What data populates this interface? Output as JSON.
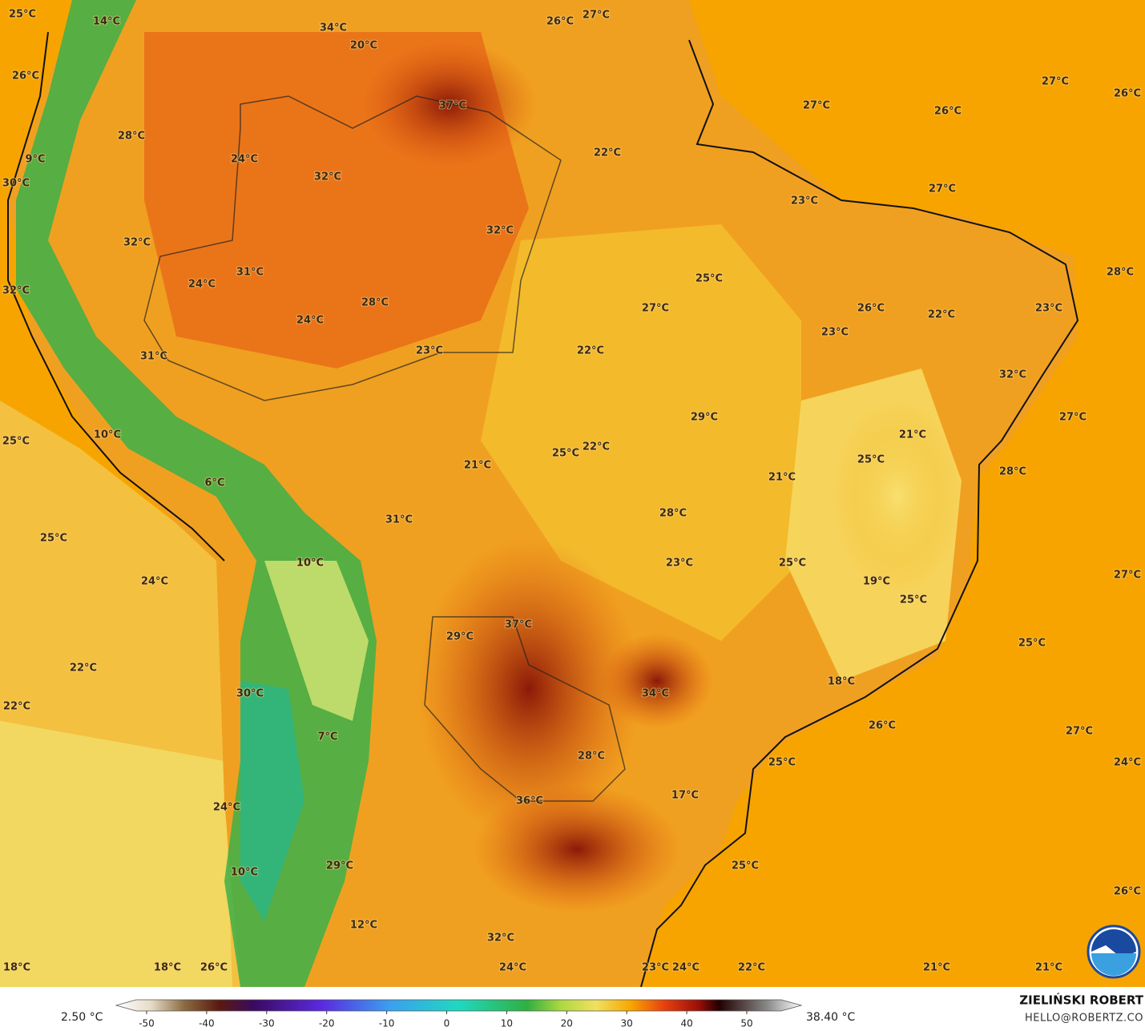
{
  "map": {
    "labels": [
      "25°C",
      "14°C",
      "34°C",
      "20°C",
      "26°C",
      "27°C",
      "26°C",
      "27°C",
      "26°C",
      "37°C",
      "27°C",
      "26°C",
      "28°C",
      "22°C",
      "24°C",
      "9°C",
      "32°C",
      "30°C",
      "27°C",
      "23°C",
      "32°C",
      "32°C",
      "31°C",
      "28°C",
      "24°C",
      "25°C",
      "32°C",
      "28°C",
      "27°C",
      "26°C",
      "22°C",
      "23°C",
      "24°C",
      "23°C",
      "23°C",
      "22°C",
      "31°C",
      "32°C",
      "29°C",
      "27°C",
      "21°C",
      "10°C",
      "25°C",
      "25°C",
      "22°C",
      "25°C",
      "21°C",
      "28°C",
      "21°C",
      "6°C",
      "28°C",
      "31°C",
      "25°C",
      "25°C",
      "23°C",
      "10°C",
      "27°C",
      "24°C",
      "19°C",
      "25°C",
      "37°C",
      "29°C",
      "25°C",
      "22°C",
      "18°C",
      "30°C",
      "34°C",
      "22°C",
      "26°C",
      "27°C",
      "7°C",
      "28°C",
      "25°C",
      "24°C",
      "17°C",
      "36°C",
      "24°C",
      "25°C",
      "29°C",
      "10°C",
      "26°C",
      "12°C",
      "32°C",
      "18°C",
      "18°C",
      "26°C",
      "24°C",
      "23°C",
      "24°C",
      "22°C",
      "21°C",
      "21°C"
    ]
  },
  "colorbar": {
    "min_label": "2.50 °C",
    "max_label": "38.40 °C",
    "ticks": [
      -50,
      -40,
      -30,
      -20,
      -10,
      0,
      10,
      20,
      30,
      40,
      50
    ]
  },
  "credits": {
    "author": "ZIELIŃSKI ROBERT",
    "contact": "HELLO@ROBERTZ.CO"
  }
}
